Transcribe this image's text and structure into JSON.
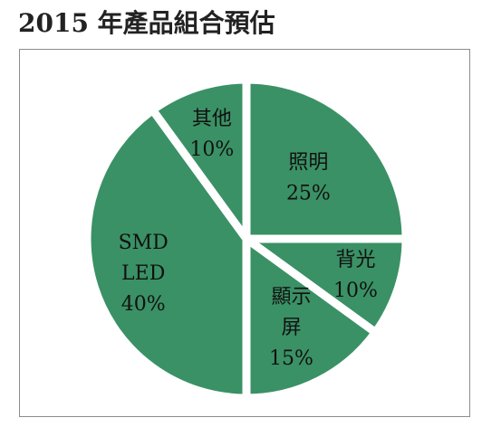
{
  "chart_data": {
    "type": "pie",
    "title": "2015 年產品組合預估",
    "color": "#3a9165",
    "start_angle_deg": 90,
    "direction": "clockwise",
    "slices": [
      {
        "key": "lighting",
        "label_lines": [
          "照明"
        ],
        "pct_label": "25%",
        "value": 25
      },
      {
        "key": "backlight",
        "label_lines": [
          "背光"
        ],
        "pct_label": "10%",
        "value": 10
      },
      {
        "key": "display",
        "label_lines": [
          "顯示",
          "屏"
        ],
        "pct_label": "15%",
        "value": 15
      },
      {
        "key": "smd-led",
        "label_lines": [
          "SMD",
          "LED"
        ],
        "pct_label": "40%",
        "value": 40
      },
      {
        "key": "other",
        "label_lines": [
          "其他"
        ],
        "pct_label": "10%",
        "value": 10
      }
    ]
  }
}
